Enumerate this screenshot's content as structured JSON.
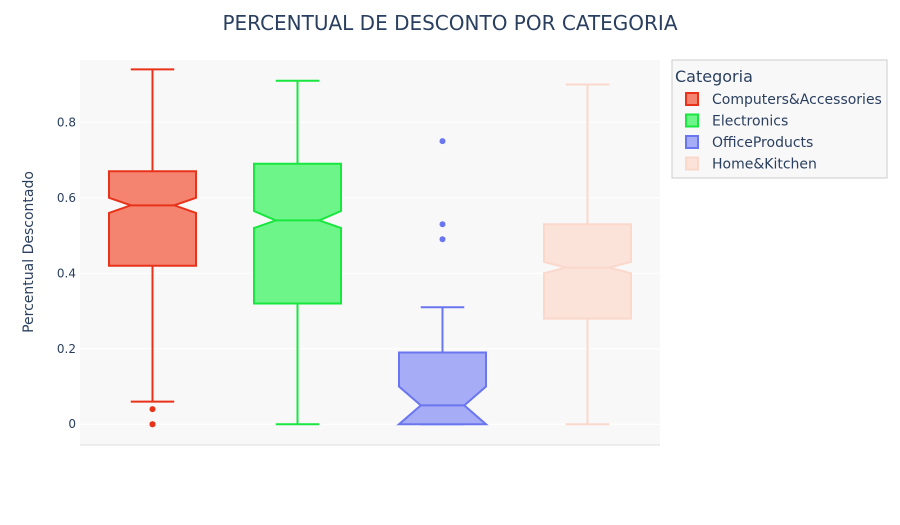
{
  "chart_data": {
    "type": "box",
    "title": "PERCENTUAL DE DESCONTO POR CATEGORIA",
    "ylabel": "Percentual Descontado",
    "xlabel": "",
    "ylim": [
      -0.055,
      0.965
    ],
    "yticks": [
      0,
      0.2,
      0.4,
      0.6,
      0.8
    ],
    "ytick_labels": [
      "0",
      "0.2",
      "0.4",
      "0.6",
      "0.8"
    ],
    "notched": true,
    "grid": true,
    "legend": {
      "title": "Categoria",
      "placement": "right"
    },
    "series": [
      {
        "name": "Computers&Accessories",
        "color": "#e8331a",
        "fill": "#f4836f",
        "min": 0.06,
        "q1": 0.42,
        "median": 0.58,
        "q3": 0.67,
        "max": 0.94,
        "notch_low": 0.56,
        "notch_high": 0.6,
        "outliers": [
          0.04,
          0.0,
          0.0
        ]
      },
      {
        "name": "Electronics",
        "color": "#19e63f",
        "fill": "#6ef58a",
        "min": 0.0,
        "q1": 0.32,
        "median": 0.54,
        "q3": 0.69,
        "max": 0.91,
        "notch_low": 0.52,
        "notch_high": 0.565,
        "outliers": []
      },
      {
        "name": "OfficeProducts",
        "color": "#6a76f0",
        "fill": "#a6acf5",
        "min": 0.0,
        "q1": 0.0,
        "median": 0.05,
        "q3": 0.19,
        "max": 0.31,
        "notch_low": 0.0,
        "notch_high": 0.1,
        "outliers": [
          0.49,
          0.53,
          0.75
        ]
      },
      {
        "name": "Home&Kitchen",
        "color": "#fbd8cb",
        "fill": "#fbe3da",
        "min": 0.0,
        "q1": 0.28,
        "median": 0.415,
        "q3": 0.53,
        "max": 0.9,
        "notch_low": 0.4,
        "notch_high": 0.43,
        "outliers": []
      }
    ]
  }
}
